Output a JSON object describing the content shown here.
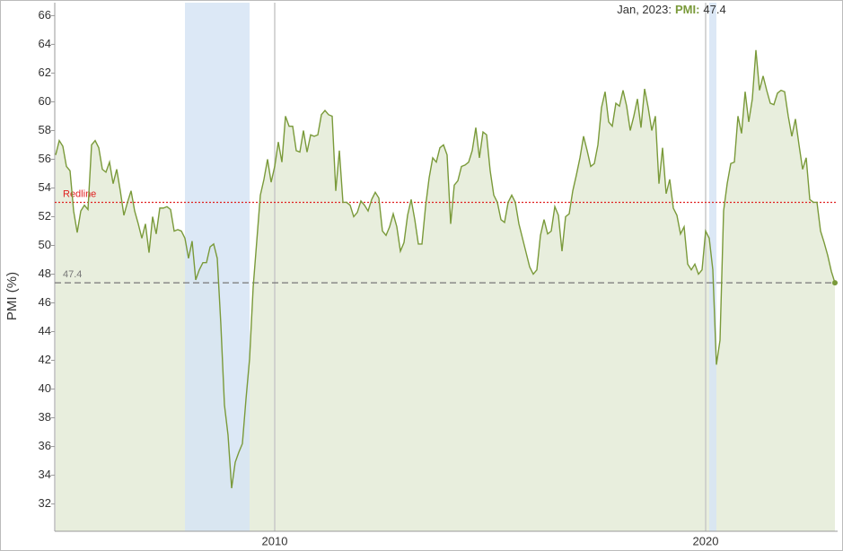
{
  "chart_data": {
    "type": "line",
    "ylabel": "PMI (%)",
    "x": [
      "2004-12",
      "2005-01",
      "2005-02",
      "2005-03",
      "2005-04",
      "2005-05",
      "2005-06",
      "2005-07",
      "2005-08",
      "2005-09",
      "2005-10",
      "2005-11",
      "2005-12",
      "2006-01",
      "2006-02",
      "2006-03",
      "2006-04",
      "2006-05",
      "2006-06",
      "2006-07",
      "2006-08",
      "2006-09",
      "2006-10",
      "2006-11",
      "2006-12",
      "2007-01",
      "2007-02",
      "2007-03",
      "2007-04",
      "2007-05",
      "2007-06",
      "2007-07",
      "2007-08",
      "2007-09",
      "2007-10",
      "2007-11",
      "2007-12",
      "2008-01",
      "2008-02",
      "2008-03",
      "2008-04",
      "2008-05",
      "2008-06",
      "2008-07",
      "2008-08",
      "2008-09",
      "2008-10",
      "2008-11",
      "2008-12",
      "2009-01",
      "2009-02",
      "2009-03",
      "2009-04",
      "2009-05",
      "2009-06",
      "2009-07",
      "2009-08",
      "2009-09",
      "2009-10",
      "2009-11",
      "2009-12",
      "2010-01",
      "2010-02",
      "2010-03",
      "2010-04",
      "2010-05",
      "2010-06",
      "2010-07",
      "2010-08",
      "2010-09",
      "2010-10",
      "2010-11",
      "2010-12",
      "2011-01",
      "2011-02",
      "2011-03",
      "2011-04",
      "2011-05",
      "2011-06",
      "2011-07",
      "2011-08",
      "2011-09",
      "2011-10",
      "2011-11",
      "2011-12",
      "2012-01",
      "2012-02",
      "2012-03",
      "2012-04",
      "2012-05",
      "2012-06",
      "2012-07",
      "2012-08",
      "2012-09",
      "2012-10",
      "2012-11",
      "2012-12",
      "2013-01",
      "2013-02",
      "2013-03",
      "2013-04",
      "2013-05",
      "2013-06",
      "2013-07",
      "2013-08",
      "2013-09",
      "2013-10",
      "2013-11",
      "2013-12",
      "2014-01",
      "2014-02",
      "2014-03",
      "2014-04",
      "2014-05",
      "2014-06",
      "2014-07",
      "2014-08",
      "2014-09",
      "2014-10",
      "2014-11",
      "2014-12",
      "2015-01",
      "2015-02",
      "2015-03",
      "2015-04",
      "2015-05",
      "2015-06",
      "2015-07",
      "2015-08",
      "2015-09",
      "2015-10",
      "2015-11",
      "2015-12",
      "2016-01",
      "2016-02",
      "2016-03",
      "2016-04",
      "2016-05",
      "2016-06",
      "2016-07",
      "2016-08",
      "2016-09",
      "2016-10",
      "2016-11",
      "2016-12",
      "2017-01",
      "2017-02",
      "2017-03",
      "2017-04",
      "2017-05",
      "2017-06",
      "2017-07",
      "2017-08",
      "2017-09",
      "2017-10",
      "2017-11",
      "2017-12",
      "2018-01",
      "2018-02",
      "2018-03",
      "2018-04",
      "2018-05",
      "2018-06",
      "2018-07",
      "2018-08",
      "2018-09",
      "2018-10",
      "2018-11",
      "2018-12",
      "2019-01",
      "2019-02",
      "2019-03",
      "2019-04",
      "2019-05",
      "2019-06",
      "2019-07",
      "2019-08",
      "2019-09",
      "2019-10",
      "2019-11",
      "2019-12",
      "2020-01",
      "2020-02",
      "2020-03",
      "2020-04",
      "2020-05",
      "2020-06",
      "2020-07",
      "2020-08",
      "2020-09",
      "2020-10",
      "2020-11",
      "2020-12",
      "2021-01",
      "2021-02",
      "2021-03",
      "2021-04",
      "2021-05",
      "2021-06",
      "2021-07",
      "2021-08",
      "2021-09",
      "2021-10",
      "2021-11",
      "2021-12",
      "2022-01",
      "2022-02",
      "2022-03",
      "2022-04",
      "2022-05",
      "2022-06",
      "2022-07",
      "2022-08",
      "2022-09",
      "2022-10",
      "2022-11",
      "2022-12",
      "2023-01"
    ],
    "series": [
      {
        "name": "PMI",
        "color": "#7a9a3a",
        "fill": "#e8eedd",
        "values": [
          56.3,
          57.3,
          56.9,
          55.5,
          55.2,
          52.4,
          50.9,
          52.4,
          52.8,
          52.5,
          57.0,
          57.3,
          56.8,
          55.3,
          55.1,
          55.8,
          54.3,
          55.3,
          53.8,
          52.1,
          53.0,
          53.8,
          52.4,
          51.5,
          50.5,
          51.5,
          49.5,
          52.0,
          50.8,
          52.6,
          52.6,
          52.7,
          52.5,
          51.0,
          51.1,
          51.0,
          50.5,
          49.1,
          50.3,
          47.6,
          48.3,
          48.8,
          48.8,
          49.9,
          50.1,
          49.1,
          44.5,
          38.9,
          36.8,
          33.1,
          34.9,
          35.6,
          36.2,
          39.3,
          42.1,
          47.1,
          50.3,
          53.5,
          54.6,
          56.0,
          54.4,
          55.5,
          57.2,
          55.8,
          59.0,
          58.3,
          58.3,
          56.6,
          56.5,
          58.0,
          56.5,
          57.7,
          57.6,
          57.7,
          59.1,
          59.4,
          59.1,
          59.0,
          53.8,
          56.6,
          53.0,
          53.0,
          52.8,
          52.0,
          52.3,
          53.1,
          52.8,
          52.4,
          53.2,
          53.7,
          53.3,
          51.0,
          50.7,
          51.3,
          52.2,
          51.3,
          49.6,
          50.2,
          52.1,
          53.2,
          51.8,
          50.1,
          50.1,
          52.7,
          54.7,
          56.1,
          55.8,
          56.8,
          57.0,
          56.3,
          51.5,
          54.2,
          54.5,
          55.5,
          55.6,
          55.8,
          56.6,
          58.2,
          56.1,
          57.9,
          57.7,
          55.2,
          53.5,
          53.0,
          51.8,
          51.6,
          53.0,
          53.5,
          53.0,
          51.5,
          50.5,
          49.5,
          48.5,
          48.0,
          48.3,
          50.7,
          51.8,
          50.8,
          51.0,
          52.7,
          52.1,
          49.6,
          52.0,
          52.2,
          53.8,
          54.9,
          56.1,
          57.6,
          56.6,
          55.5,
          55.7,
          57.0,
          59.6,
          60.7,
          58.6,
          58.3,
          59.9,
          59.7,
          60.8,
          59.7,
          58.0,
          59.0,
          60.2,
          58.2,
          60.9,
          59.6,
          58.0,
          59.0,
          54.3,
          56.8,
          53.6,
          54.6,
          52.6,
          52.1,
          50.8,
          51.3,
          48.7,
          48.3,
          48.7,
          48.0,
          48.3,
          51.0,
          50.5,
          48.3,
          41.7,
          43.4,
          52.4,
          54.3,
          55.7,
          55.8,
          59.0,
          57.8,
          60.7,
          58.6,
          60.2,
          63.6,
          60.8,
          61.8,
          60.8,
          59.9,
          59.8,
          60.6,
          60.8,
          60.7,
          59.0,
          57.6,
          58.8,
          57.0,
          55.3,
          56.1,
          53.2,
          53.0,
          53.0,
          51.0,
          50.2,
          49.3,
          48.2,
          47.4
        ]
      }
    ],
    "xlim": [
      "2004-12",
      "2023-01"
    ],
    "xticks": [
      {
        "value": "2010-01",
        "label": "2010"
      },
      {
        "value": "2020-01",
        "label": "2020"
      }
    ],
    "ylim": [
      30.1,
      66.9
    ],
    "yticks": [
      32,
      34,
      36,
      38,
      40,
      42,
      44,
      46,
      48,
      50,
      52,
      54,
      56,
      58,
      60,
      62,
      64,
      66
    ],
    "shaded_ranges": [
      [
        "2007-12",
        "2009-06"
      ],
      [
        "2020-02",
        "2020-04"
      ]
    ],
    "shade_color": "#d6e4f5",
    "reference_lines": [
      {
        "value": 53,
        "label": "Redline",
        "color": "#e02020"
      },
      {
        "value": 47.4,
        "label": "47.4",
        "color": "#777777"
      }
    ],
    "tooltip": {
      "label": "Jan, 2023:",
      "name": "PMI:",
      "value": 47.4
    }
  }
}
